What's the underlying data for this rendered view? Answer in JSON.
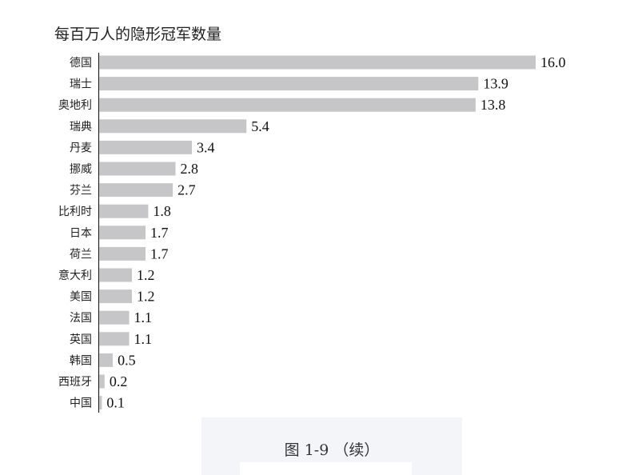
{
  "chart_data": {
    "type": "bar",
    "orientation": "horizontal",
    "title": "每百万人的隐形冠军数量",
    "categories": [
      "德国",
      "瑞士",
      "奥地利",
      "瑞典",
      "丹麦",
      "挪威",
      "芬兰",
      "比利时",
      "日本",
      "荷兰",
      "意大利",
      "美国",
      "法国",
      "英国",
      "韩国",
      "西班牙",
      "中国"
    ],
    "values": [
      16.0,
      13.9,
      13.8,
      5.4,
      3.4,
      2.8,
      2.7,
      1.8,
      1.7,
      1.7,
      1.2,
      1.2,
      1.1,
      1.1,
      0.5,
      0.2,
      0.1
    ],
    "value_labels": [
      "16.0",
      "13.9",
      "13.8",
      "5.4",
      "3.4",
      "2.8",
      "2.7",
      "1.8",
      "1.7",
      "1.7",
      "1.2",
      "1.2",
      "1.1",
      "1.1",
      "0.5",
      "0.2",
      "0.1"
    ],
    "xlim": [
      0,
      16
    ],
    "grid": false,
    "bar_color": "#c6c6c8"
  },
  "caption": "图 1-9 （续）"
}
